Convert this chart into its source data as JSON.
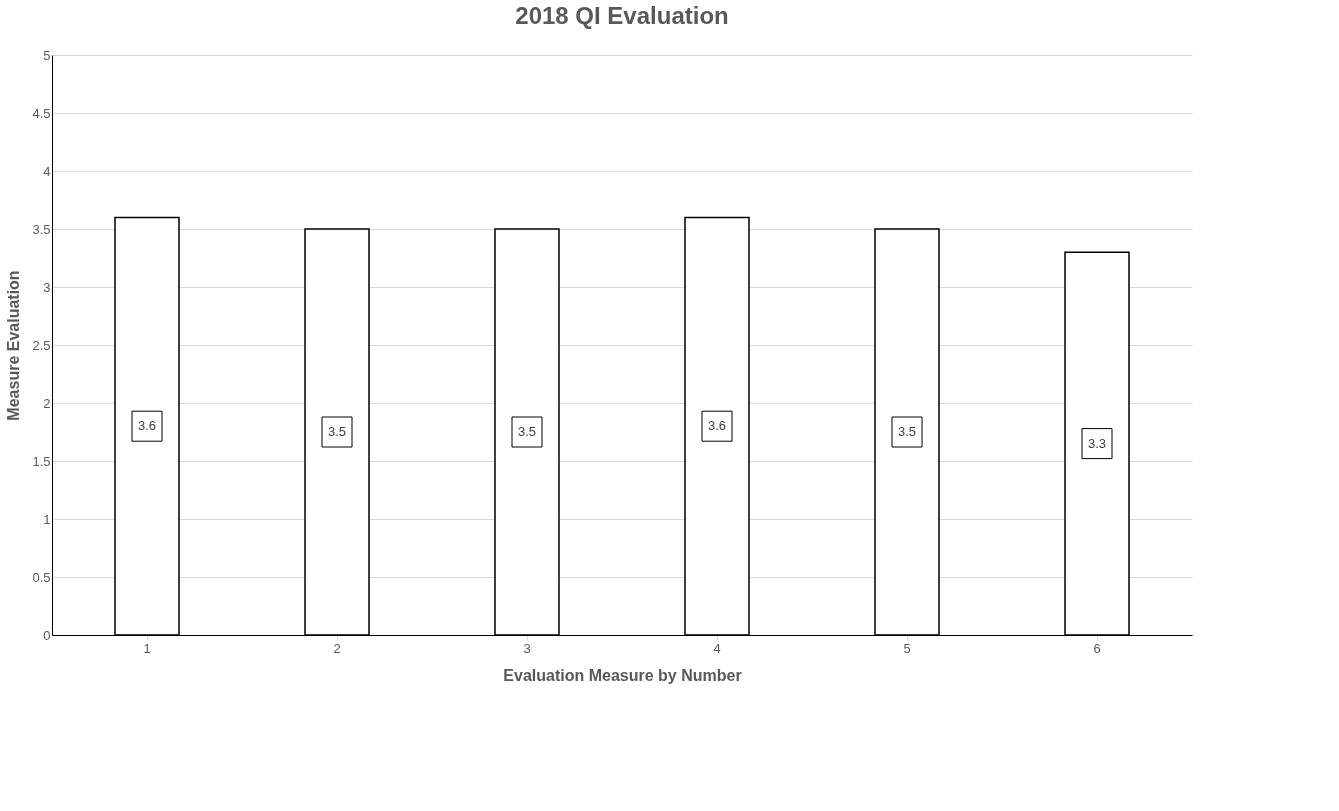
{
  "chart_data": {
    "type": "bar",
    "title": "2018 QI Evaluation",
    "xlabel": "Evaluation Measure by Number",
    "ylabel": "Measure Evaluation",
    "categories": [
      "1",
      "2",
      "3",
      "4",
      "5",
      "6"
    ],
    "values": [
      3.6,
      3.5,
      3.5,
      3.6,
      3.5,
      3.3
    ],
    "color": "#ffffff",
    "ylim": [
      0,
      5
    ],
    "yticks": [
      0,
      0.5,
      1,
      1.5,
      2,
      2.5,
      3,
      3.5,
      4,
      4.5,
      5
    ],
    "grid": "y",
    "data_labels": true
  }
}
